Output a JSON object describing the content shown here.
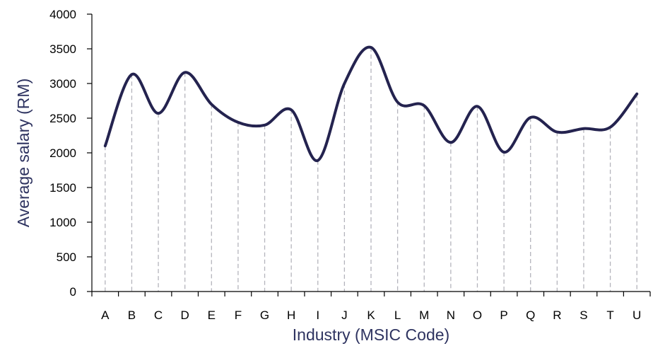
{
  "chart_data": {
    "type": "line",
    "smooth": true,
    "title": "",
    "xlabel": "Industry (MSIC Code)",
    "ylabel": "Average salary (RM)",
    "categories": [
      "A",
      "B",
      "C",
      "D",
      "E",
      "F",
      "G",
      "H",
      "I",
      "J",
      "K",
      "L",
      "M",
      "N",
      "O",
      "P",
      "Q",
      "R",
      "S",
      "T",
      "U"
    ],
    "series": [
      {
        "values": [
          2100,
          3130,
          2570,
          3160,
          2700,
          2440,
          2400,
          2620,
          1890,
          3000,
          3520,
          2730,
          2680,
          2150,
          2670,
          2010,
          2510,
          2300,
          2350,
          2370,
          2850
        ]
      }
    ],
    "ylim": [
      0,
      4000
    ],
    "yticks": [
      0,
      500,
      1000,
      1500,
      2000,
      2500,
      3000,
      3500,
      4000
    ],
    "grid": "vertical dashed drop lines at each category",
    "legend": "none",
    "colors": {
      "line": "#24234f",
      "axis": "#000000",
      "dropline": "#b4b4bc",
      "axis_title": "#2e3360"
    }
  }
}
